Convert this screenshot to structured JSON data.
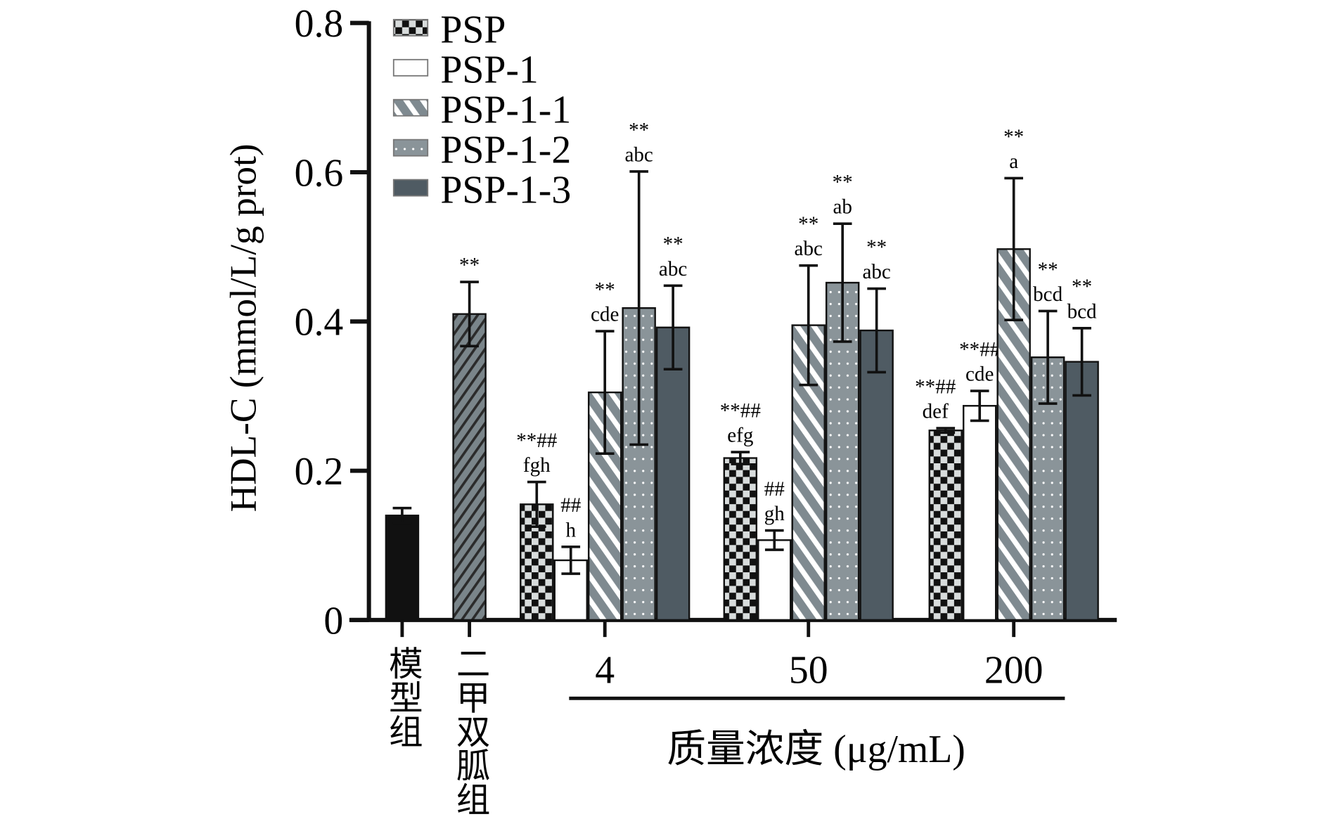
{
  "chart_data": {
    "type": "bar",
    "ylabel": "HDL-C (mmol/L/g prot)",
    "xlabel": "质量浓度 (μg/mL)",
    "ylim": [
      0,
      0.8
    ],
    "yticks": [
      "0",
      "0.2",
      "0.4",
      "0.6",
      "0.8"
    ],
    "legend_position": "top-left",
    "legend": [
      "PSP",
      "PSP-1",
      "PSP-1-1",
      "PSP-1-2",
      "PSP-1-3"
    ],
    "controls": [
      {
        "label": "模型组",
        "value": 0.14,
        "err": 0.01,
        "annot": [
          "",
          ""
        ]
      },
      {
        "label": "二甲双胍组",
        "value": 0.41,
        "err": 0.043,
        "annot": [
          "**",
          ""
        ]
      }
    ],
    "categories": [
      "4",
      "50",
      "200"
    ],
    "series": [
      {
        "name": "PSP",
        "values": [
          0.155,
          0.217,
          0.254
        ],
        "err": [
          0.03,
          0.008,
          0.003
        ],
        "annot": [
          [
            "**##",
            "fgh"
          ],
          [
            "**##",
            "efg"
          ],
          [
            "**##",
            "def"
          ]
        ]
      },
      {
        "name": "PSP-1",
        "values": [
          0.08,
          0.107,
          0.287
        ],
        "err": [
          0.018,
          0.013,
          0.02
        ],
        "annot": [
          [
            "##",
            "h"
          ],
          [
            "##",
            "gh"
          ],
          [
            "**##",
            "cde"
          ]
        ]
      },
      {
        "name": "PSP-1-1",
        "values": [
          0.305,
          0.395,
          0.497
        ],
        "err": [
          0.082,
          0.08,
          0.095
        ],
        "annot": [
          [
            "**",
            "cde"
          ],
          [
            "**",
            "abc"
          ],
          [
            "**",
            "a"
          ]
        ]
      },
      {
        "name": "PSP-1-2",
        "values": [
          0.418,
          0.452,
          0.352
        ],
        "err": [
          0.183,
          0.079,
          0.062
        ],
        "annot": [
          [
            "**",
            "abc"
          ],
          [
            "**",
            "ab"
          ],
          [
            "**",
            "bcd"
          ]
        ]
      },
      {
        "name": "PSP-1-3",
        "values": [
          0.392,
          0.388,
          0.346
        ],
        "err": [
          0.056,
          0.056,
          0.045
        ],
        "annot": [
          [
            "**",
            "abc"
          ],
          [
            "**",
            "abc"
          ],
          [
            "**",
            "bcd"
          ]
        ]
      }
    ]
  }
}
